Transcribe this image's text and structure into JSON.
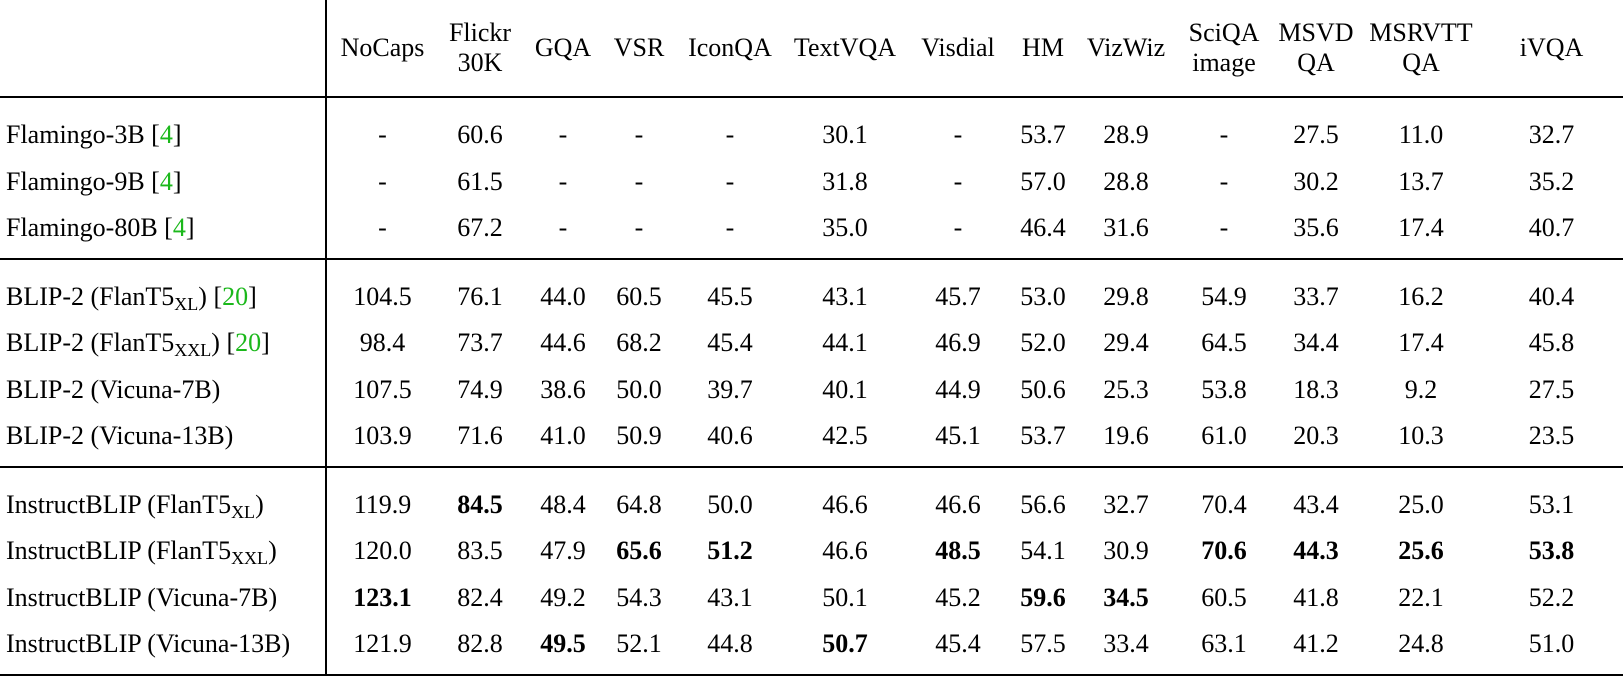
{
  "columns": [
    "NoCaps",
    "Flickr 30K",
    "GQA",
    "VSR",
    "IconQA",
    "TextVQA",
    "Visdial",
    "HM",
    "VizWiz",
    "SciQA image",
    "MSVD QA",
    "MSRVTT QA",
    "iVQA"
  ],
  "header": {
    "nocaps": "NoCaps",
    "flickr_1": "Flickr",
    "flickr_2": "30K",
    "gqa": "GQA",
    "vsr": "VSR",
    "iconqa": "IconQA",
    "textvqa": "TextVQA",
    "visdial": "Visdial",
    "hm": "HM",
    "vizwiz": "VizWiz",
    "sciqa_1": "SciQA",
    "sciqa_2": "image",
    "msvd_1": "MSVD",
    "msvd_2": "QA",
    "msrvtt_1": "MSRVTT",
    "msrvtt_2": "QA",
    "ivqa": "iVQA"
  },
  "groups": [
    {
      "rows": [
        {
          "name": "Flamingo-3B ",
          "sub": "",
          "suffix": "",
          "cite": "4",
          "values": [
            "-",
            "60.6",
            "-",
            "-",
            "-",
            "30.1",
            "-",
            "53.7",
            "28.9",
            "-",
            "27.5",
            "11.0",
            "32.7"
          ],
          "bold": []
        },
        {
          "name": "Flamingo-9B ",
          "sub": "",
          "suffix": "",
          "cite": "4",
          "values": [
            "-",
            "61.5",
            "-",
            "-",
            "-",
            "31.8",
            "-",
            "57.0",
            "28.8",
            "-",
            "30.2",
            "13.7",
            "35.2"
          ],
          "bold": []
        },
        {
          "name": "Flamingo-80B ",
          "sub": "",
          "suffix": "",
          "cite": "4",
          "values": [
            "-",
            "67.2",
            "-",
            "-",
            "-",
            "35.0",
            "-",
            "46.4",
            "31.6",
            "-",
            "35.6",
            "17.4",
            "40.7"
          ],
          "bold": []
        }
      ]
    },
    {
      "rows": [
        {
          "name": "BLIP-2 (FlanT5",
          "sub": "XL",
          "suffix": ") ",
          "cite": "20",
          "values": [
            "104.5",
            "76.1",
            "44.0",
            "60.5",
            "45.5",
            "43.1",
            "45.7",
            "53.0",
            "29.8",
            "54.9",
            "33.7",
            "16.2",
            "40.4"
          ],
          "bold": []
        },
        {
          "name": "BLIP-2 (FlanT5",
          "sub": "XXL",
          "suffix": ") ",
          "cite": "20",
          "values": [
            "98.4",
            "73.7",
            "44.6",
            "68.2",
            "45.4",
            "44.1",
            "46.9",
            "52.0",
            "29.4",
            "64.5",
            "34.4",
            "17.4",
            "45.8"
          ],
          "bold": []
        },
        {
          "name": "BLIP-2 (Vicuna-7B)",
          "sub": "",
          "suffix": "",
          "cite": "",
          "values": [
            "107.5",
            "74.9",
            "38.6",
            "50.0",
            "39.7",
            "40.1",
            "44.9",
            "50.6",
            "25.3",
            "53.8",
            "18.3",
            "9.2",
            "27.5"
          ],
          "bold": []
        },
        {
          "name": "BLIP-2 (Vicuna-13B)",
          "sub": "",
          "suffix": "",
          "cite": "",
          "values": [
            "103.9",
            "71.6",
            "41.0",
            "50.9",
            "40.6",
            "42.5",
            "45.1",
            "53.7",
            "19.6",
            "61.0",
            "20.3",
            "10.3",
            "23.5"
          ],
          "bold": []
        }
      ]
    },
    {
      "rows": [
        {
          "name": "InstructBLIP (FlanT5",
          "sub": "XL",
          "suffix": ")",
          "cite": "",
          "values": [
            "119.9",
            "84.5",
            "48.4",
            "64.8",
            "50.0",
            "46.6",
            "46.6",
            "56.6",
            "32.7",
            "70.4",
            "43.4",
            "25.0",
            "53.1"
          ],
          "bold": [
            1
          ]
        },
        {
          "name": "InstructBLIP (FlanT5",
          "sub": "XXL",
          "suffix": ")",
          "cite": "",
          "values": [
            "120.0",
            "83.5",
            "47.9",
            "65.6",
            "51.2",
            "46.6",
            "48.5",
            "54.1",
            "30.9",
            "70.6",
            "44.3",
            "25.6",
            "53.8"
          ],
          "bold": [
            3,
            4,
            6,
            9,
            10,
            11,
            12
          ]
        },
        {
          "name": "InstructBLIP (Vicuna-7B)",
          "sub": "",
          "suffix": "",
          "cite": "",
          "values": [
            "123.1",
            "82.4",
            "49.2",
            "54.3",
            "43.1",
            "50.1",
            "45.2",
            "59.6",
            "34.5",
            "60.5",
            "41.8",
            "22.1",
            "52.2"
          ],
          "bold": [
            0,
            7,
            8
          ]
        },
        {
          "name": "InstructBLIP (Vicuna-13B)",
          "sub": "",
          "suffix": "",
          "cite": "",
          "values": [
            "121.9",
            "82.8",
            "49.5",
            "52.1",
            "44.8",
            "50.7",
            "45.4",
            "57.5",
            "33.4",
            "63.1",
            "41.2",
            "24.8",
            "51.0"
          ],
          "bold": [
            2,
            5
          ]
        }
      ]
    }
  ],
  "colors": {
    "citation": "#1bb81b",
    "text": "#000000"
  }
}
